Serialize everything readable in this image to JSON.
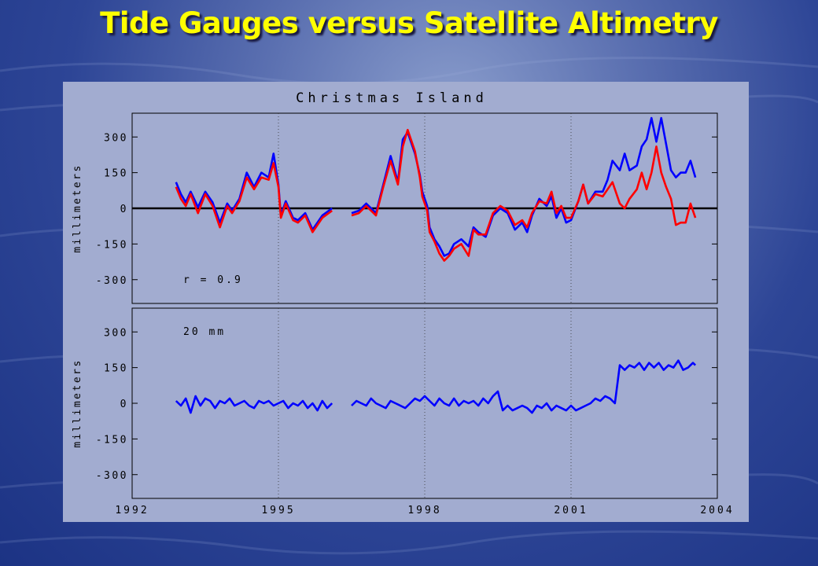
{
  "slide": {
    "title": "Tide Gauges versus Satellite Altimetry"
  },
  "colors": {
    "title": "#ffff00",
    "tide_gauge": "#ff0000",
    "altimetry": "#0000ff",
    "panel": "#a2acd0",
    "zero_line": "#000000"
  },
  "chart_data": [
    {
      "type": "line",
      "title": "Christmas Island",
      "xlabel": "",
      "ylabel": "millimeters",
      "xlim": [
        1992,
        2004
      ],
      "ylim": [
        -400,
        400
      ],
      "x_ticks": [
        "1992",
        "1995",
        "1998",
        "2001",
        "2004"
      ],
      "y_ticks": [
        "300",
        "150",
        "0",
        "-150",
        "-300"
      ],
      "annotation": "r = 0.9",
      "grid": "vertical dotted at 1995, 1998, 2001",
      "zero_line": true,
      "series": [
        {
          "color": "#0000ff",
          "x": [
            1992.9,
            1993.0,
            1993.1,
            1993.2,
            1993.35,
            1993.5,
            1993.65,
            1993.8,
            1993.95,
            1994.05,
            1994.2,
            1994.35,
            1994.5,
            1994.65,
            1994.8,
            1994.9,
            1995.0,
            1995.05,
            1995.15,
            1995.3,
            1995.4,
            1995.55,
            1995.7,
            1995.9,
            1996.1,
            null,
            1996.5,
            1996.65,
            1996.8,
            1997.0,
            1997.15,
            1997.3,
            1997.45,
            1997.55,
            1997.65,
            1997.8,
            1997.9,
            1997.95,
            1998.05,
            1998.1,
            1998.2,
            1998.3,
            1998.4,
            1998.5,
            1998.6,
            1998.75,
            1998.9,
            1999.0,
            1999.1,
            1999.25,
            1999.4,
            1999.55,
            1999.7,
            1999.85,
            2000.0,
            2000.1,
            2000.2,
            2000.35,
            2000.5,
            2000.6,
            2000.7,
            2000.8,
            2000.9,
            2001.0,
            2001.15,
            2001.25,
            2001.35,
            2001.5,
            2001.65,
            2001.75,
            2001.85,
            2002.0,
            2002.1,
            2002.2,
            2002.35,
            2002.45,
            2002.55,
            2002.65,
            2002.75,
            2002.85,
            2002.95,
            2003.05,
            2003.15,
            2003.25,
            2003.35,
            2003.45,
            2003.55
          ],
          "values": [
            110,
            60,
            25,
            70,
            5,
            70,
            25,
            -60,
            20,
            -10,
            40,
            150,
            90,
            150,
            130,
            230,
            100,
            -30,
            30,
            -40,
            -50,
            -20,
            -90,
            -30,
            0,
            null,
            -20,
            -10,
            20,
            -20,
            100,
            220,
            110,
            290,
            320,
            230,
            140,
            70,
            10,
            -80,
            -130,
            -160,
            -200,
            -190,
            -150,
            -130,
            -160,
            -80,
            -100,
            -120,
            -30,
            0,
            -20,
            -90,
            -60,
            -100,
            -30,
            40,
            10,
            50,
            -40,
            0,
            -60,
            -50,
            30,
            100,
            20,
            70,
            70,
            120,
            200,
            160,
            230,
            160,
            180,
            260,
            290,
            380,
            280,
            380,
            270,
            160,
            130,
            150,
            150,
            200,
            130
          ]
        },
        {
          "color": "#ff0000",
          "x": [
            1992.9,
            1993.0,
            1993.1,
            1993.2,
            1993.35,
            1993.5,
            1993.65,
            1993.8,
            1993.95,
            1994.05,
            1994.2,
            1994.35,
            1994.5,
            1994.65,
            1994.8,
            1994.9,
            1995.0,
            1995.05,
            1995.15,
            1995.3,
            1995.4,
            1995.55,
            1995.7,
            1995.9,
            1996.1,
            null,
            1996.5,
            1996.65,
            1996.8,
            1997.0,
            1997.15,
            1997.3,
            1997.45,
            1997.55,
            1997.65,
            1997.8,
            1997.9,
            1997.95,
            1998.05,
            1998.1,
            1998.2,
            1998.3,
            1998.4,
            1998.5,
            1998.6,
            1998.75,
            1998.9,
            1999.0,
            1999.1,
            1999.25,
            1999.4,
            1999.55,
            1999.7,
            1999.85,
            2000.0,
            2000.1,
            2000.2,
            2000.35,
            2000.5,
            2000.6,
            2000.7,
            2000.8,
            2000.9,
            2001.0,
            2001.15,
            2001.25,
            2001.35,
            2001.5,
            2001.65,
            2001.75,
            2001.85,
            2002.0,
            2002.1,
            2002.2,
            2002.35,
            2002.45,
            2002.55,
            2002.65,
            2002.75,
            2002.85,
            2002.95,
            2003.05,
            2003.15,
            2003.25,
            2003.35,
            2003.45,
            2003.55
          ],
          "values": [
            90,
            40,
            10,
            60,
            -20,
            60,
            10,
            -80,
            10,
            -20,
            30,
            130,
            80,
            130,
            120,
            190,
            90,
            -40,
            20,
            -50,
            -60,
            -30,
            -100,
            -40,
            -10,
            null,
            -30,
            -20,
            10,
            -30,
            90,
            200,
            100,
            260,
            330,
            240,
            130,
            50,
            -10,
            -100,
            -140,
            -190,
            -220,
            -200,
            -170,
            -150,
            -200,
            -90,
            -110,
            -110,
            -20,
            10,
            -10,
            -70,
            -50,
            -80,
            -20,
            30,
            20,
            70,
            -20,
            10,
            -40,
            -40,
            30,
            100,
            20,
            60,
            50,
            80,
            110,
            20,
            0,
            40,
            80,
            150,
            80,
            150,
            260,
            150,
            90,
            40,
            -70,
            -60,
            -60,
            20,
            -40
          ]
        }
      ]
    },
    {
      "type": "line",
      "title": "",
      "xlabel": "",
      "ylabel": "millimeters",
      "xlim": [
        1992,
        2004
      ],
      "ylim": [
        -400,
        400
      ],
      "x_ticks": [
        "1992",
        "1995",
        "1998",
        "2001",
        "2004"
      ],
      "y_ticks": [
        "300",
        "150",
        "0",
        "-150",
        "-300"
      ],
      "annotation": "20 mm",
      "grid": "vertical dotted at 1995, 1998, 2001",
      "series": [
        {
          "color": "#0000ff",
          "x": [
            1992.9,
            1993.0,
            1993.1,
            1993.2,
            1993.3,
            1993.4,
            1993.5,
            1993.6,
            1993.7,
            1993.8,
            1993.9,
            1994.0,
            1994.1,
            1994.2,
            1994.3,
            1994.4,
            1994.5,
            1994.6,
            1994.7,
            1994.8,
            1994.9,
            1995.0,
            1995.1,
            1995.2,
            1995.3,
            1995.4,
            1995.5,
            1995.6,
            1995.7,
            1995.8,
            1995.9,
            1996.0,
            1996.1,
            null,
            1996.5,
            1996.6,
            1996.7,
            1996.8,
            1996.9,
            1997.0,
            1997.1,
            1997.2,
            1997.3,
            1997.4,
            1997.5,
            1997.6,
            1997.7,
            1997.8,
            1997.9,
            1998.0,
            1998.1,
            1998.2,
            1998.3,
            1998.4,
            1998.5,
            1998.6,
            1998.7,
            1998.8,
            1998.9,
            1999.0,
            1999.1,
            1999.2,
            1999.3,
            1999.4,
            1999.5,
            1999.6,
            1999.7,
            1999.8,
            1999.9,
            2000.0,
            2000.1,
            2000.2,
            2000.3,
            2000.4,
            2000.5,
            2000.6,
            2000.7,
            2000.8,
            2000.9,
            2001.0,
            2001.1,
            2001.2,
            2001.3,
            2001.4,
            2001.5,
            2001.6,
            2001.7,
            2001.8,
            2001.9,
            2002.0,
            2002.1,
            2002.2,
            2002.3,
            2002.4,
            2002.5,
            2002.6,
            2002.7,
            2002.8,
            2002.9,
            2003.0,
            2003.1,
            2003.2,
            2003.3,
            2003.4,
            2003.5,
            2003.55
          ],
          "values": [
            10,
            -10,
            20,
            -40,
            30,
            -10,
            20,
            10,
            -20,
            10,
            0,
            20,
            -10,
            0,
            10,
            -10,
            -20,
            10,
            0,
            10,
            -10,
            0,
            10,
            -20,
            0,
            -10,
            10,
            -20,
            0,
            -30,
            10,
            -20,
            0,
            null,
            -10,
            10,
            0,
            -10,
            20,
            0,
            -10,
            -20,
            10,
            0,
            -10,
            -20,
            0,
            20,
            10,
            30,
            10,
            -10,
            20,
            0,
            -10,
            20,
            -10,
            10,
            0,
            10,
            -10,
            20,
            0,
            30,
            50,
            -30,
            -10,
            -30,
            -20,
            -10,
            -20,
            -40,
            -10,
            -20,
            0,
            -30,
            -10,
            -20,
            -30,
            -10,
            -30,
            -20,
            -10,
            0,
            20,
            10,
            30,
            20,
            0,
            160,
            140,
            160,
            150,
            170,
            140,
            170,
            150,
            170,
            140,
            160,
            150,
            180,
            140,
            150,
            170,
            160
          ]
        }
      ]
    }
  ]
}
